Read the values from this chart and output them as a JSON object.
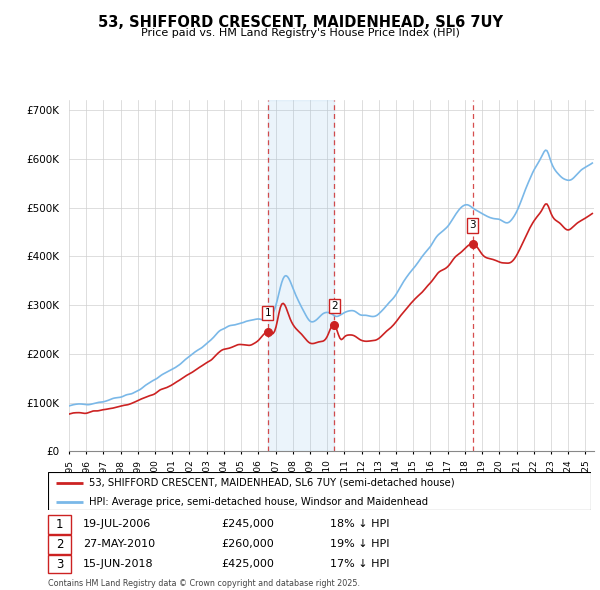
{
  "title": "53, SHIFFORD CRESCENT, MAIDENHEAD, SL6 7UY",
  "subtitle": "Price paid vs. HM Land Registry's House Price Index (HPI)",
  "legend_line1": "53, SHIFFORD CRESCENT, MAIDENHEAD, SL6 7UY (semi-detached house)",
  "legend_line2": "HPI: Average price, semi-detached house, Windsor and Maidenhead",
  "footer": "Contains HM Land Registry data © Crown copyright and database right 2025.\nThis data is licensed under the Open Government Licence v3.0.",
  "transactions": [
    {
      "num": 1,
      "date": "19-JUL-2006",
      "price": "£245,000",
      "pct": "18% ↓ HPI",
      "year": 2006.54
    },
    {
      "num": 2,
      "date": "27-MAY-2010",
      "price": "£260,000",
      "pct": "19% ↓ HPI",
      "year": 2010.41
    },
    {
      "num": 3,
      "date": "15-JUN-2018",
      "price": "£425,000",
      "pct": "17% ↓ HPI",
      "year": 2018.45
    }
  ],
  "transaction_prices": [
    245000,
    260000,
    425000
  ],
  "hpi_color": "#7ab8e8",
  "price_color": "#cc2222",
  "shade_color": "#ddeeff",
  "ylim": [
    0,
    720000
  ],
  "yticks": [
    0,
    100000,
    200000,
    300000,
    400000,
    500000,
    600000,
    700000
  ],
  "xlim_start": 1995.0,
  "xlim_end": 2025.5
}
